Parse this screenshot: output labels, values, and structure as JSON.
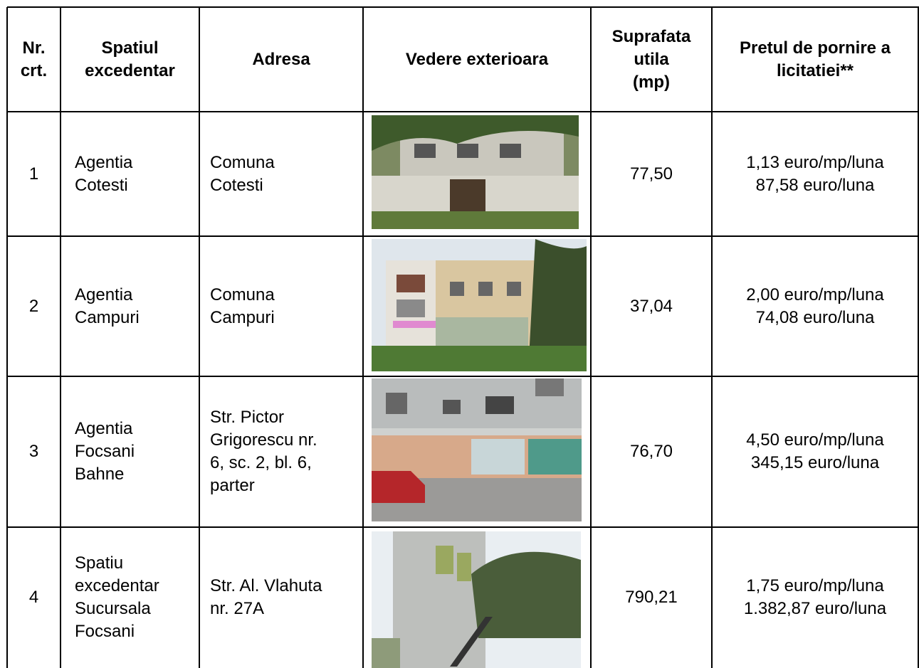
{
  "table": {
    "header": [
      [
        "Nr.",
        "crt."
      ],
      [
        "Spatiul",
        "excedentar"
      ],
      [
        "Adresa"
      ],
      [
        "Vedere exterioara"
      ],
      [
        "Suprafata",
        "utila",
        "(mp)"
      ],
      [
        "Pretul de pornire a",
        "licitatiei**"
      ]
    ],
    "rows": [
      {
        "nr": "1",
        "name": [
          "Agentia",
          "Cotesti"
        ],
        "address": [
          "Comuna",
          "Cotesti"
        ],
        "area": "77,50",
        "price": [
          "1,13 euro/mp/luna",
          "87,58 euro/luna"
        ]
      },
      {
        "nr": "2",
        "name": [
          "Agentia",
          "Campuri"
        ],
        "address": [
          "Comuna",
          "Campuri"
        ],
        "area": "37,04",
        "price": [
          "2,00 euro/mp/luna",
          "74,08 euro/luna"
        ]
      },
      {
        "nr": "3",
        "name": [
          "Agentia",
          "Focsani",
          "Bahne"
        ],
        "address": [
          "Str. Pictor",
          "Grigorescu nr.",
          "6, sc. 2, bl. 6,",
          "parter"
        ],
        "area": "76,70",
        "price": [
          "4,50 euro/mp/luna",
          "345,15 euro/luna"
        ]
      },
      {
        "nr": "4",
        "name": [
          "Spatiu",
          "excedentar",
          "Sucursala",
          "Focsani"
        ],
        "address": [
          "Str. Al. Vlahuta",
          "nr. 27A"
        ],
        "area": "790,21",
        "price": [
          "1,75 euro/mp/luna",
          "1.382,87 euro/luna"
        ]
      }
    ]
  }
}
